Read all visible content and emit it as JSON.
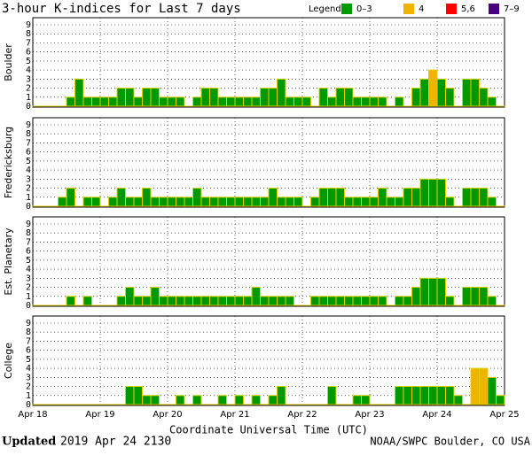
{
  "chart_data": {
    "type": "bar",
    "title": "3-hour K-indices for Last 7 days",
    "legend_title": "Legend:",
    "legend": [
      {
        "label": "0–3",
        "color": "#009900",
        "range": [
          0,
          3
        ]
      },
      {
        "label": "4",
        "color": "#f0b400",
        "range": [
          4,
          4
        ]
      },
      {
        "label": "5,6",
        "color": "#ff0000",
        "range": [
          5,
          6
        ]
      },
      {
        "label": "7–9",
        "color": "#4b0082",
        "range": [
          7,
          9
        ]
      }
    ],
    "x_label": "Coordinate Universal Time (UTC)",
    "xticks": [
      "Apr 18",
      "Apr 19",
      "Apr 20",
      "Apr 21",
      "Apr 22",
      "Apr 23",
      "Apr 24",
      "Apr 25"
    ],
    "ylim": [
      0,
      9
    ],
    "yticks": [
      0,
      1,
      2,
      3,
      4,
      5,
      6,
      7,
      8,
      9
    ],
    "grid": true,
    "series": [
      {
        "name": "Boulder",
        "values": [
          0,
          0,
          0,
          0,
          1,
          3,
          1,
          1,
          1,
          1,
          2,
          2,
          1,
          2,
          2,
          1,
          1,
          1,
          0,
          1,
          2,
          2,
          1,
          1,
          1,
          1,
          1,
          2,
          2,
          3,
          1,
          1,
          1,
          0,
          2,
          1,
          2,
          2,
          1,
          1,
          1,
          1,
          0,
          1,
          0,
          2,
          3,
          4,
          3,
          2,
          0,
          3,
          3,
          2,
          1,
          0
        ]
      },
      {
        "name": "Fredericksburg",
        "values": [
          0,
          0,
          0,
          1,
          2,
          0,
          1,
          1,
          0,
          1,
          2,
          1,
          1,
          2,
          1,
          1,
          1,
          1,
          1,
          2,
          1,
          1,
          1,
          1,
          1,
          1,
          1,
          1,
          2,
          1,
          1,
          1,
          0,
          1,
          2,
          2,
          2,
          1,
          1,
          1,
          1,
          2,
          1,
          1,
          2,
          2,
          3,
          3,
          3,
          1,
          0,
          2,
          2,
          2,
          1,
          0
        ]
      },
      {
        "name": "Est. Planetary",
        "values": [
          0,
          0,
          0,
          0,
          1,
          0,
          1,
          0,
          0,
          0,
          1,
          2,
          1,
          1,
          2,
          1,
          1,
          1,
          1,
          1,
          1,
          1,
          1,
          1,
          1,
          1,
          2,
          1,
          1,
          1,
          1,
          0,
          0,
          1,
          1,
          1,
          1,
          1,
          1,
          1,
          1,
          1,
          0,
          1,
          1,
          2,
          3,
          3,
          3,
          1,
          0,
          2,
          2,
          2,
          1,
          0
        ]
      },
      {
        "name": "College",
        "values": [
          0,
          0,
          0,
          0,
          0,
          0,
          0,
          0,
          0,
          0,
          0,
          2,
          2,
          1,
          1,
          0,
          0,
          1,
          0,
          1,
          0,
          0,
          1,
          0,
          1,
          0,
          1,
          0,
          1,
          2,
          0,
          0,
          0,
          0,
          0,
          2,
          0,
          0,
          1,
          1,
          0,
          0,
          0,
          2,
          2,
          2,
          2,
          2,
          2,
          2,
          1,
          0,
          4,
          4,
          3,
          1
        ]
      }
    ]
  },
  "footer": {
    "updated_label": "Updated",
    "timestamp": "2019 Apr 24 2130",
    "source": "NOAA/SWPC Boulder, CO USA"
  }
}
